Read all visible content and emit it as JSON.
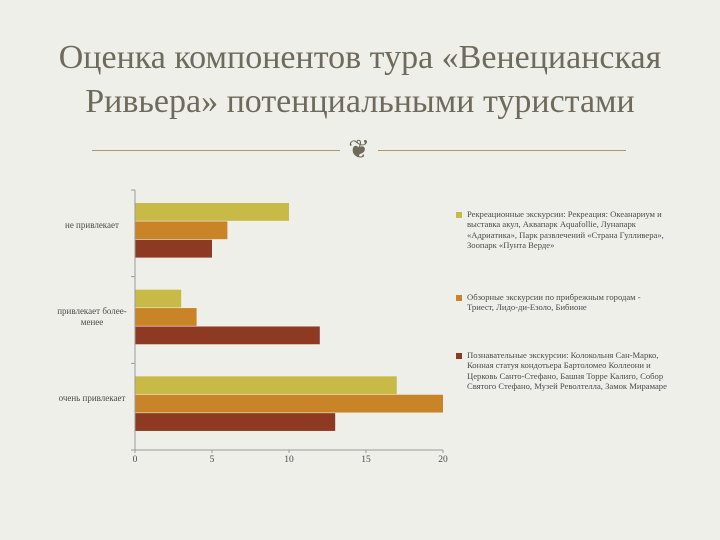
{
  "title": "Оценка компонентов тура «Венецианская Ривьера» потенциальными туристами",
  "ornament_icon": "scroll-ornament-icon",
  "chart_data": {
    "type": "bar",
    "orientation": "horizontal",
    "categories": [
      "не привлекает",
      "привлекает более-менее",
      "очень привлекает"
    ],
    "series": [
      {
        "name": "Рекреационные экскурсии: Рекреация: Океанариум и выставка акул, Аквапарк Aquafollie, Лунапарк «Адриатика», Парк развлечений «Страна Гулливера», Зоопарк «Пунта Верде»",
        "color": "#c8ba46",
        "values": [
          10,
          3,
          17
        ]
      },
      {
        "name": "Обзорные экскурсии по прибрежным городам - Триест, Лидо-ди-Езоло, Бибионе",
        "color": "#c98427",
        "values": [
          6,
          4,
          20
        ]
      },
      {
        "name": "Познавательные экскурсии: Колокольня Сан-Марко, Конная статуя кондотьера Бартоломео Коллеони и Церковь Санто-Стефано, Башня Торре Калиго, Собор Святого Стефано, Музей Револтелла, Замок Мирамаре",
        "color": "#8e3a22",
        "values": [
          5,
          12,
          13
        ]
      }
    ],
    "x_ticks": [
      "0",
      "5",
      "10",
      "15",
      "20"
    ],
    "xlim": [
      0,
      20
    ],
    "grid": false,
    "legend_position": "right"
  }
}
